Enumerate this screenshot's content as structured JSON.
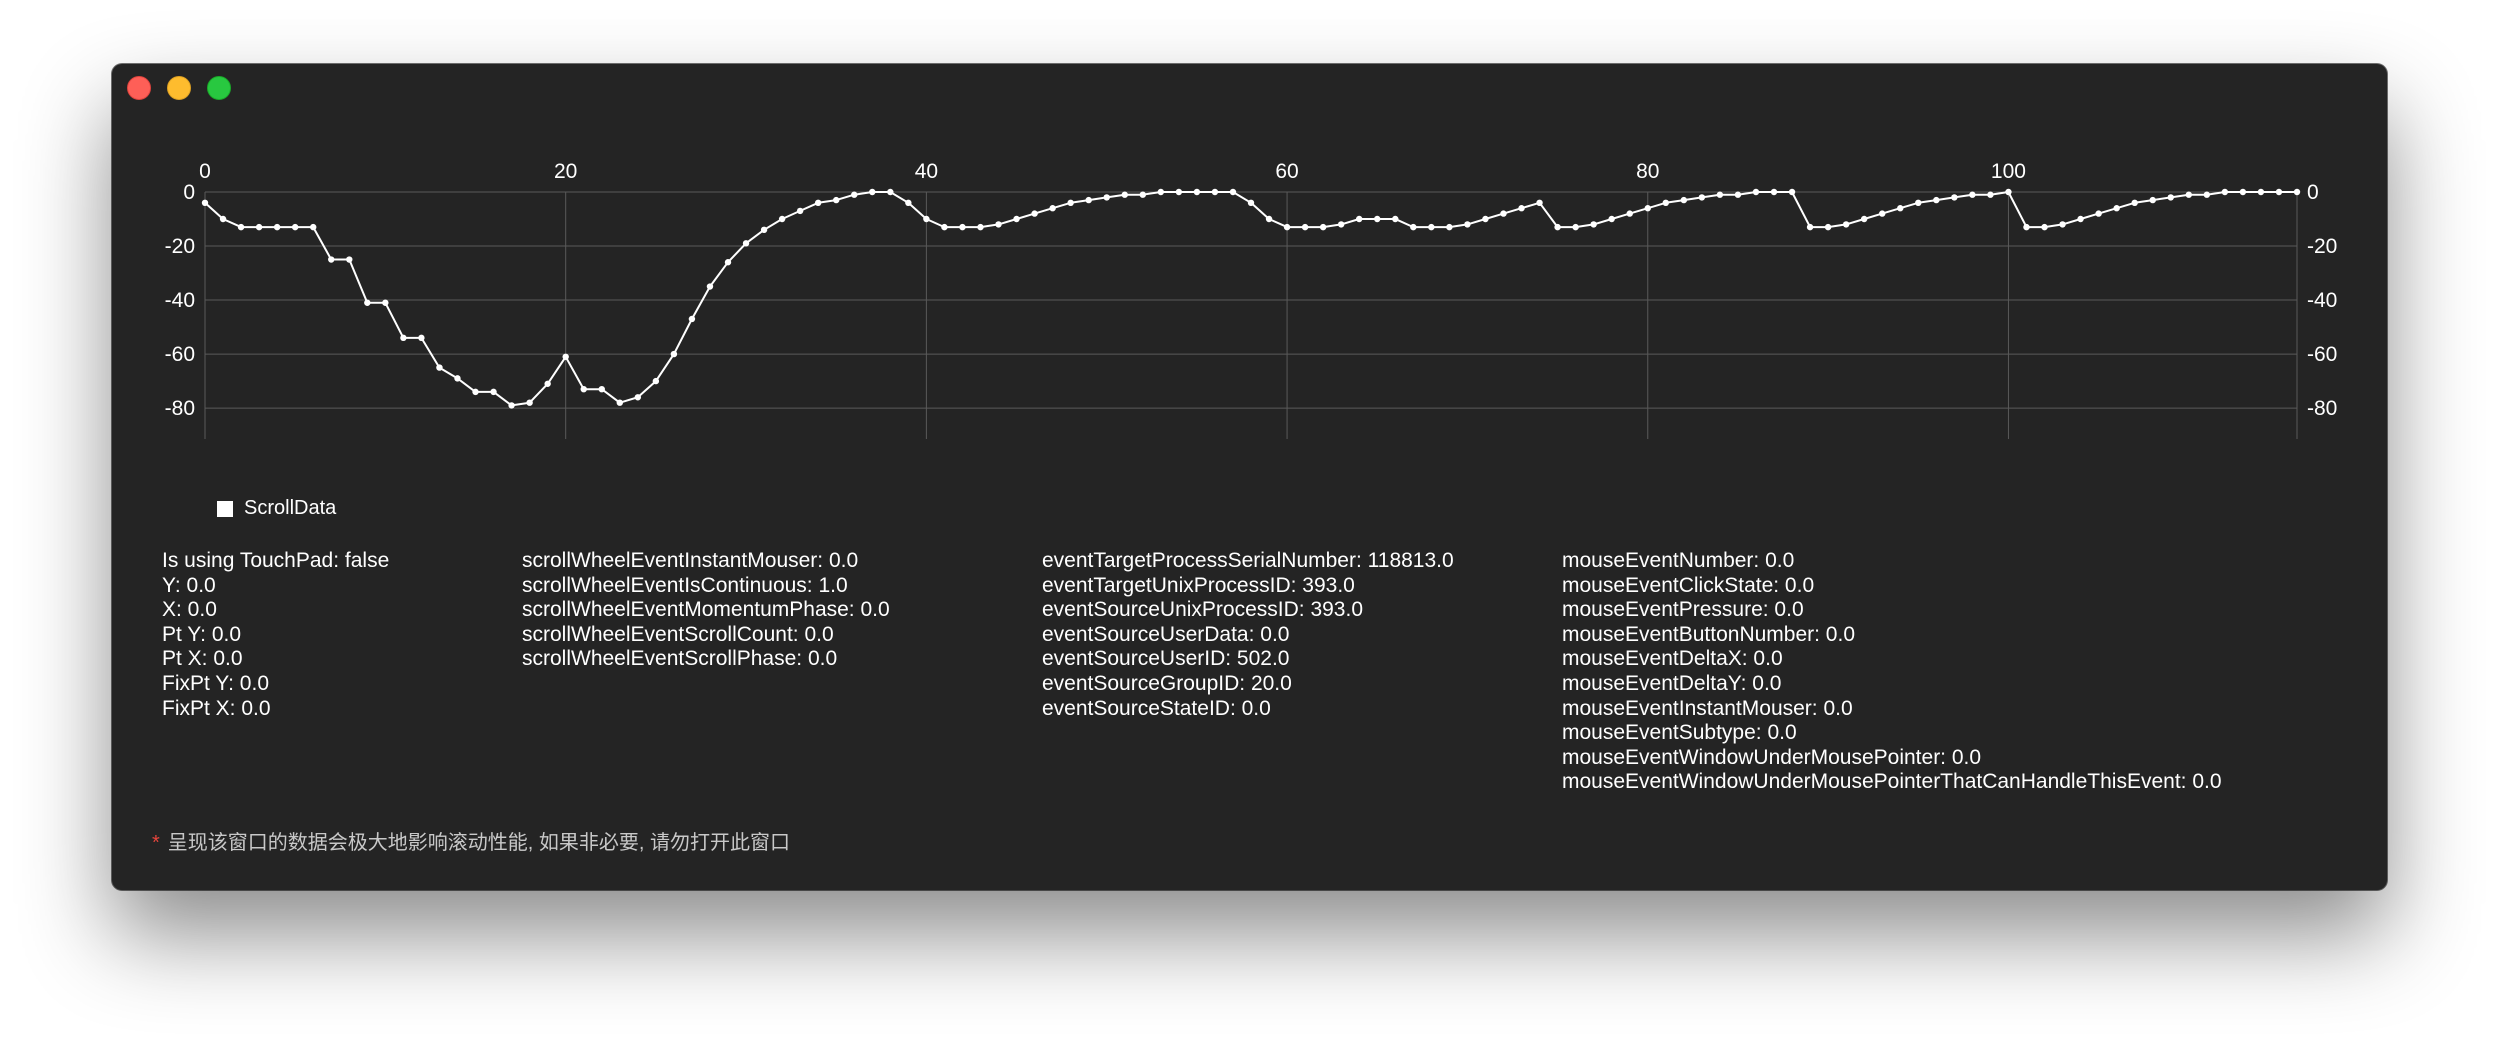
{
  "window": {
    "buttons": [
      "close",
      "minimize",
      "zoom"
    ],
    "background": "#242424",
    "traffic_colors": {
      "close": "#fe5f57",
      "minimize": "#febc2e",
      "zoom": "#28c840"
    }
  },
  "chart_data": {
    "type": "line",
    "title": "",
    "xlabel": "",
    "ylabel": "",
    "x_ticks": [
      0,
      20,
      40,
      60,
      80,
      100
    ],
    "y_ticks": [
      0,
      -20,
      -40,
      -60,
      -80
    ],
    "xlim": [
      0,
      116
    ],
    "ylim": [
      -87,
      0
    ],
    "axes": "x on top, y on left and right",
    "grid": true,
    "legend_position": "bottom-left",
    "series": [
      {
        "name": "ScrollData",
        "color": "#ffffff",
        "x": [
          0,
          1,
          2,
          3,
          4,
          5,
          6,
          7,
          8,
          9,
          10,
          11,
          12,
          13,
          14,
          15,
          16,
          17,
          18,
          19,
          20,
          21,
          22,
          23,
          24,
          25,
          26,
          27,
          28,
          29,
          30,
          31,
          32,
          33,
          34,
          35,
          36,
          37,
          38,
          39,
          40,
          41,
          42,
          43,
          44,
          45,
          46,
          47,
          48,
          49,
          50,
          51,
          52,
          53,
          54,
          55,
          56,
          57,
          58,
          59,
          60,
          61,
          62,
          63,
          64,
          65,
          66,
          67,
          68,
          69,
          70,
          71,
          72,
          73,
          74,
          75,
          76,
          77,
          78,
          79,
          80,
          81,
          82,
          83,
          84,
          85,
          86,
          87,
          88,
          89,
          90,
          91,
          92,
          93,
          94,
          95,
          96,
          97,
          98,
          99,
          100,
          101,
          102,
          103,
          104,
          105,
          106,
          107,
          108,
          109,
          110,
          111,
          112,
          113,
          114,
          115,
          116
        ],
        "values": [
          -4,
          -10,
          -13,
          -13,
          -13,
          -13,
          -13,
          -25,
          -25,
          -41,
          -41,
          -54,
          -54,
          -65,
          -69,
          -74,
          -74,
          -79,
          -78,
          -71,
          -61,
          -73,
          -73,
          -78,
          -76,
          -70,
          -60,
          -47,
          -35,
          -26,
          -19,
          -14,
          -10,
          -7,
          -4,
          -3,
          -1,
          0,
          0,
          -4,
          -10,
          -13,
          -13,
          -13,
          -12,
          -10,
          -8,
          -6,
          -4,
          -3,
          -2,
          -1,
          -1,
          0,
          0,
          0,
          0,
          0,
          -4,
          -10,
          -13,
          -13,
          -13,
          -12,
          -10,
          -10,
          -10,
          -13,
          -13,
          -13,
          -12,
          -10,
          -8,
          -6,
          -4,
          -13,
          -13,
          -12,
          -10,
          -8,
          -6,
          -4,
          -3,
          -2,
          -1,
          -1,
          0,
          0,
          0,
          -13,
          -13,
          -12,
          -10,
          -8,
          -6,
          -4,
          -3,
          -2,
          -1,
          -1,
          0,
          -13,
          -13,
          -12,
          -10,
          -8,
          -6,
          -4,
          -3,
          -2,
          -1,
          -1,
          0,
          0,
          0,
          0,
          0
        ]
      }
    ]
  },
  "legend": {
    "label": "ScrollData"
  },
  "info_columns": [
    {
      "lines": [
        "Is using TouchPad: false",
        "Y: 0.0",
        "X: 0.0",
        "Pt Y: 0.0",
        "Pt X: 0.0",
        "FixPt Y: 0.0",
        "FixPt X: 0.0"
      ]
    },
    {
      "lines": [
        "scrollWheelEventInstantMouser: 0.0",
        "scrollWheelEventIsContinuous: 1.0",
        "scrollWheelEventMomentumPhase: 0.0",
        "scrollWheelEventScrollCount: 0.0",
        "scrollWheelEventScrollPhase: 0.0"
      ]
    },
    {
      "lines": [
        "eventTargetProcessSerialNumber: 118813.0",
        "eventTargetUnixProcessID: 393.0",
        "eventSourceUnixProcessID: 393.0",
        "eventSourceUserData: 0.0",
        "eventSourceUserID: 502.0",
        "eventSourceGroupID: 20.0",
        "eventSourceStateID: 0.0"
      ]
    },
    {
      "lines": [
        "mouseEventNumber: 0.0",
        "mouseEventClickState: 0.0",
        "mouseEventPressure: 0.0",
        "mouseEventButtonNumber: 0.0",
        "mouseEventDeltaX: 0.0",
        "mouseEventDeltaY: 0.0",
        "mouseEventInstantMouser: 0.0",
        "mouseEventSubtype: 0.0",
        "mouseEventWindowUnderMousePointer: 0.0",
        "mouseEventWindowUnderMousePointerThatCanHandleThisEvent: 0.0"
      ]
    }
  ],
  "footnote": {
    "star": "*",
    "text": "呈现该窗口的数据会极大地影响滚动性能, 如果非必要, 请勿打开此窗口",
    "star_color": "#e7453c"
  }
}
